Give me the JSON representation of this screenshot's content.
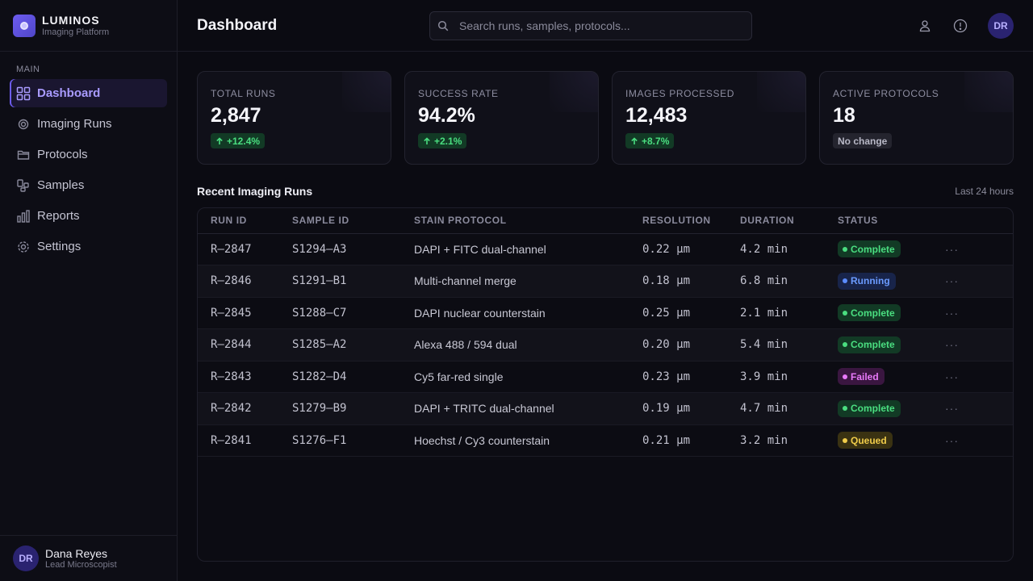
{
  "brand": {
    "name": "LUMINOS",
    "subtitle": "Imaging Platform"
  },
  "sidebar": {
    "section_label": "MAIN",
    "items": [
      {
        "label": "Dashboard",
        "icon": "grid-icon",
        "active": true
      },
      {
        "label": "Imaging Runs",
        "icon": "aperture-icon",
        "active": false
      },
      {
        "label": "Protocols",
        "icon": "folder-icon",
        "active": false
      },
      {
        "label": "Samples",
        "icon": "samples-icon",
        "active": false
      },
      {
        "label": "Reports",
        "icon": "bar-chart-icon",
        "active": false
      },
      {
        "label": "Settings",
        "icon": "gear-icon",
        "active": false
      }
    ],
    "user": {
      "initials": "DR",
      "name": "Dana Reyes",
      "role": "Lead Microscopist"
    }
  },
  "header": {
    "title": "Dashboard",
    "search_placeholder": "Search runs, samples, protocols...",
    "avatar_initials": "DR"
  },
  "stats": [
    {
      "label": "TOTAL RUNS",
      "value": "2,847",
      "delta": "+12.4%",
      "trend": "up"
    },
    {
      "label": "SUCCESS RATE",
      "value": "94.2%",
      "delta": "+2.1%",
      "trend": "up"
    },
    {
      "label": "IMAGES PROCESSED",
      "value": "12,483",
      "delta": "+8.7%",
      "trend": "up"
    },
    {
      "label": "ACTIVE PROTOCOLS",
      "value": "18",
      "delta": "No change",
      "trend": "flat"
    }
  ],
  "runs_table": {
    "title": "Recent Imaging Runs",
    "range": "Last 24 hours",
    "columns": [
      "RUN ID",
      "SAMPLE ID",
      "STAIN PROTOCOL",
      "RESOLUTION",
      "DURATION",
      "STATUS"
    ],
    "rows": [
      {
        "run_id": "R–2847",
        "sample_id": "S1294–A3",
        "protocol": "DAPI + FITC dual-channel",
        "resolution": "0.22 µm",
        "duration": "4.2 min",
        "status": "Complete"
      },
      {
        "run_id": "R–2846",
        "sample_id": "S1291–B1",
        "protocol": "Multi-channel merge",
        "resolution": "0.18 µm",
        "duration": "6.8 min",
        "status": "Running"
      },
      {
        "run_id": "R–2845",
        "sample_id": "S1288–C7",
        "protocol": "DAPI nuclear counterstain",
        "resolution": "0.25 µm",
        "duration": "2.1 min",
        "status": "Complete"
      },
      {
        "run_id": "R–2844",
        "sample_id": "S1285–A2",
        "protocol": "Alexa 488 / 594 dual",
        "resolution": "0.20 µm",
        "duration": "5.4 min",
        "status": "Complete"
      },
      {
        "run_id": "R–2843",
        "sample_id": "S1282–D4",
        "protocol": "Cy5 far-red single",
        "resolution": "0.23 µm",
        "duration": "3.9 min",
        "status": "Failed"
      },
      {
        "run_id": "R–2842",
        "sample_id": "S1279–B9",
        "protocol": "DAPI + TRITC dual-channel",
        "resolution": "0.19 µm",
        "duration": "4.7 min",
        "status": "Complete"
      },
      {
        "run_id": "R–2841",
        "sample_id": "S1276–F1",
        "protocol": "Hoechst / Cy3 counterstain",
        "resolution": "0.21 µm",
        "duration": "3.2 min",
        "status": "Queued"
      }
    ],
    "row_action_label": "···"
  },
  "colors": {
    "accent": "#6d5cf0",
    "complete": "#4ade80",
    "running": "#5b8cff",
    "failed": "#e879f9",
    "queued": "#f0cc4a"
  }
}
